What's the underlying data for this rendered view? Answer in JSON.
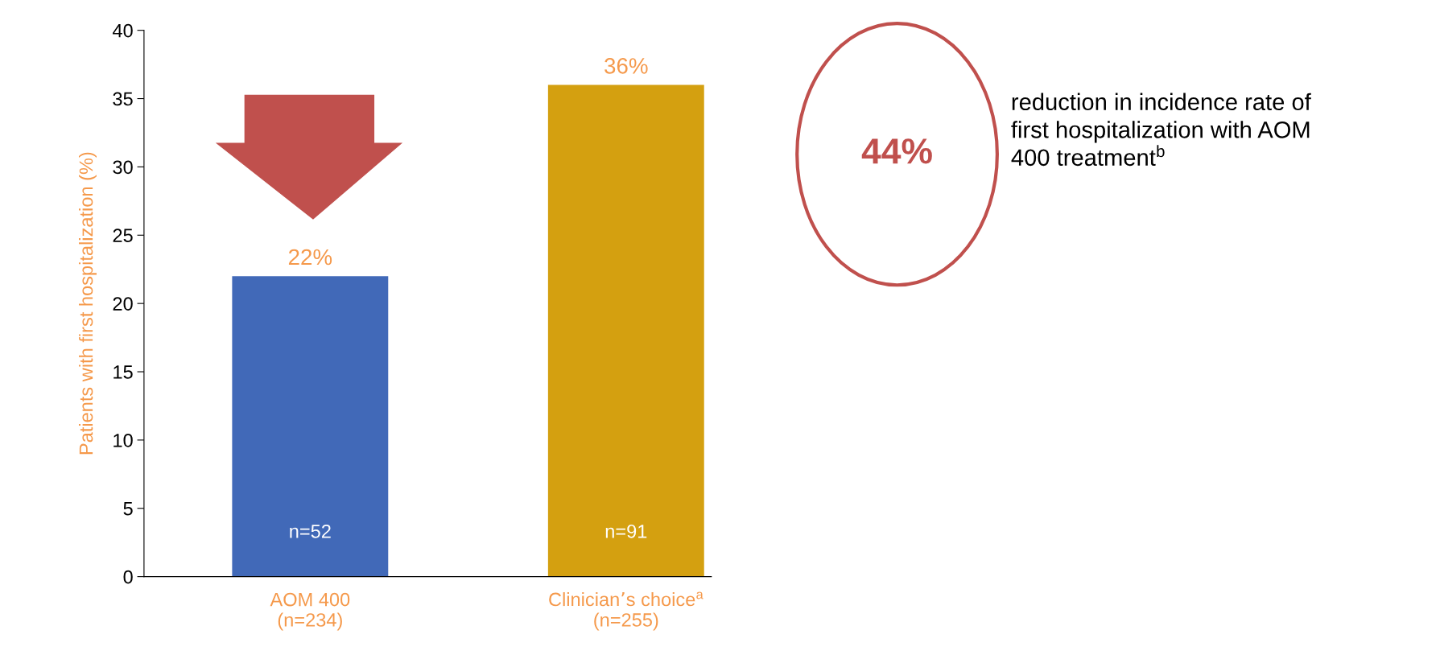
{
  "chart_data": {
    "type": "bar",
    "ylabel": "Patients with first hospitalization (%)",
    "categories": [
      "AOM 400\n(n=234)",
      "Clinician’s choice$^{a}$\n(n=255)"
    ],
    "values": [
      22,
      36
    ],
    "colors": [
      "#4169b8",
      "#d4a010"
    ],
    "value_labels": [
      "22%",
      "36%"
    ],
    "ylim": [
      0,
      40
    ],
    "yticks": [
      0,
      5,
      10,
      15,
      20,
      25,
      30,
      35,
      40
    ],
    "grid": false,
    "legend": false,
    "annotations": [
      "44%",
      "reduction in incidence rate of\nfirst hospitalization with AOM\n400 treatment$^{b}$",
      "n=52",
      "n=91"
    ]
  }
}
